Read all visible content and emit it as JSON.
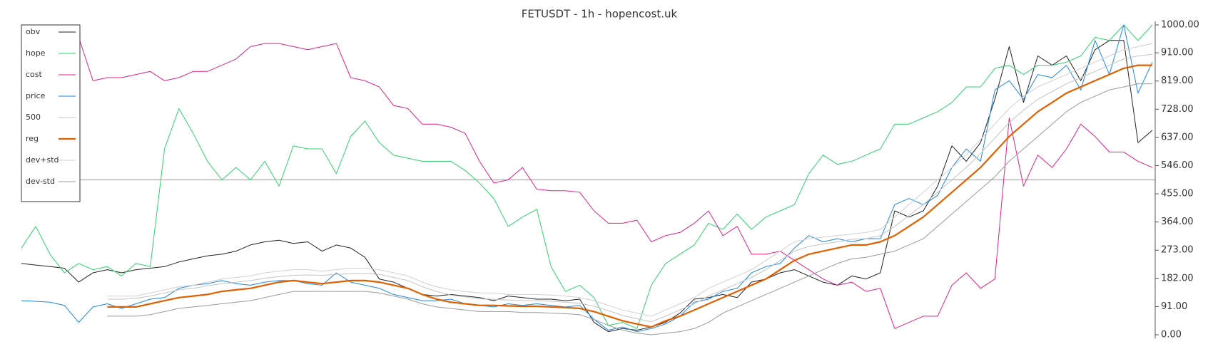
{
  "chart_data": {
    "type": "line",
    "title": "FETUSDT - 1h - hopencost.uk",
    "ylim": [
      0,
      1000
    ],
    "yticks": [
      {
        "value": 0,
        "label": "0.00"
      },
      {
        "value": 91,
        "label": "91.00"
      },
      {
        "value": 182,
        "label": "182.00"
      },
      {
        "value": 273,
        "label": "273.00"
      },
      {
        "value": 364,
        "label": "364.00"
      },
      {
        "value": 455,
        "label": "455.00"
      },
      {
        "value": 546,
        "label": "546.00"
      },
      {
        "value": 637,
        "label": "637.00"
      },
      {
        "value": 728,
        "label": "728.00"
      },
      {
        "value": 819,
        "label": "819.00"
      },
      {
        "value": 910,
        "label": "910.00"
      },
      {
        "value": 1000,
        "label": "1000.00"
      }
    ],
    "hline": 500,
    "hline_color": "#aaaaaa",
    "legend": "upper left",
    "series": [
      {
        "name": "obv",
        "color": "#222222",
        "width": 1,
        "values": [
          230,
          225,
          220,
          215,
          170,
          200,
          210,
          200,
          210,
          215,
          220,
          235,
          245,
          255,
          260,
          270,
          290,
          300,
          305,
          295,
          300,
          270,
          290,
          280,
          250,
          180,
          170,
          150,
          130,
          125,
          130,
          125,
          120,
          110,
          125,
          120,
          115,
          115,
          110,
          115,
          40,
          10,
          20,
          15,
          25,
          40,
          70,
          115,
          120,
          130,
          120,
          170,
          180,
          200,
          210,
          190,
          170,
          160,
          190,
          180,
          200,
          400,
          380,
          400,
          480,
          610,
          560,
          620,
          760,
          930,
          750,
          900,
          870,
          900,
          820,
          920,
          950,
          950,
          620,
          660
        ]
      },
      {
        "name": "hope",
        "color": "#2fd36e",
        "width": 1,
        "values": [
          280,
          350,
          260,
          200,
          230,
          210,
          220,
          190,
          230,
          220,
          600,
          730,
          650,
          560,
          500,
          540,
          500,
          560,
          480,
          610,
          600,
          600,
          520,
          640,
          690,
          620,
          580,
          570,
          560,
          560,
          560,
          530,
          490,
          440,
          350,
          380,
          405,
          220,
          140,
          160,
          120,
          30,
          40,
          20,
          160,
          230,
          260,
          290,
          360,
          340,
          390,
          340,
          380,
          400,
          420,
          520,
          580,
          550,
          560,
          580,
          600,
          680,
          680,
          700,
          720,
          750,
          800,
          800,
          860,
          870,
          840,
          870,
          870,
          880,
          900,
          960,
          950,
          1000,
          950,
          1000
        ]
      },
      {
        "name": "cost",
        "color": "#e0218a",
        "width": 1,
        "values": [
          null,
          null,
          null,
          null,
          960,
          820,
          830,
          830,
          840,
          850,
          820,
          830,
          850,
          850,
          870,
          890,
          930,
          940,
          940,
          930,
          920,
          930,
          940,
          830,
          820,
          800,
          740,
          730,
          680,
          680,
          670,
          650,
          560,
          490,
          500,
          540,
          470,
          465,
          465,
          460,
          400,
          360,
          360,
          370,
          300,
          320,
          330,
          360,
          400,
          320,
          350,
          260,
          260,
          270,
          240,
          210,
          180,
          160,
          170,
          140,
          150,
          20,
          40,
          60,
          60,
          160,
          200,
          150,
          180,
          700,
          480,
          580,
          540,
          600,
          680,
          640,
          590,
          590,
          560,
          540
        ]
      },
      {
        "name": "price",
        "color": "#1e88e5",
        "width": 1,
        "values": [
          110,
          108,
          105,
          95,
          40,
          90,
          100,
          85,
          100,
          115,
          120,
          150,
          160,
          165,
          175,
          165,
          160,
          170,
          175,
          175,
          165,
          160,
          200,
          170,
          160,
          150,
          130,
          120,
          110,
          110,
          115,
          100,
          95,
          90,
          100,
          95,
          100,
          95,
          90,
          95,
          50,
          15,
          25,
          10,
          20,
          35,
          60,
          105,
          115,
          140,
          150,
          200,
          220,
          230,
          280,
          320,
          300,
          310,
          300,
          310,
          310,
          420,
          440,
          420,
          450,
          540,
          600,
          560,
          790,
          820,
          760,
          840,
          830,
          870,
          790,
          950,
          840,
          1000,
          780,
          880
        ]
      },
      {
        "name": "500",
        "color": "#c4c4c4",
        "width": 1,
        "values": [
          null,
          null,
          null,
          null,
          null,
          null,
          115,
          115,
          118,
          125,
          135,
          145,
          150,
          158,
          165,
          170,
          175,
          182,
          188,
          192,
          193,
          192,
          195,
          198,
          198,
          195,
          185,
          175,
          155,
          140,
          128,
          122,
          116,
          114,
          112,
          110,
          110,
          108,
          105,
          102,
          92,
          78,
          62,
          52,
          42,
          60,
          80,
          100,
          125,
          145,
          165,
          185,
          210,
          240,
          270,
          285,
          293,
          300,
          308,
          310,
          320,
          350,
          385,
          420,
          460,
          500,
          540,
          585,
          635,
          685,
          725,
          760,
          785,
          810,
          830,
          850,
          870,
          890,
          900,
          905
        ]
      },
      {
        "name": "reg",
        "color": "#e06000",
        "width": 2.2,
        "values": [
          null,
          null,
          null,
          null,
          null,
          null,
          90,
          90,
          90,
          100,
          110,
          120,
          125,
          130,
          140,
          145,
          150,
          160,
          170,
          175,
          170,
          165,
          170,
          175,
          175,
          170,
          160,
          150,
          130,
          115,
          105,
          100,
          95,
          95,
          93,
          92,
          92,
          90,
          88,
          85,
          75,
          60,
          45,
          35,
          25,
          45,
          60,
          80,
          100,
          120,
          140,
          160,
          180,
          210,
          240,
          260,
          270,
          280,
          290,
          290,
          300,
          320,
          350,
          380,
          420,
          460,
          500,
          540,
          590,
          640,
          680,
          720,
          750,
          780,
          800,
          820,
          840,
          860,
          870,
          870
        ]
      },
      {
        "name": "dev+std",
        "color": "#d0d0d0",
        "width": 1,
        "values": [
          null,
          null,
          null,
          null,
          null,
          null,
          125,
          125,
          125,
          135,
          145,
          155,
          160,
          170,
          180,
          185,
          190,
          200,
          205,
          210,
          210,
          205,
          210,
          215,
          215,
          210,
          200,
          190,
          170,
          155,
          145,
          140,
          135,
          135,
          130,
          130,
          130,
          128,
          125,
          120,
          110,
          95,
          80,
          70,
          60,
          80,
          100,
          120,
          150,
          170,
          190,
          210,
          240,
          270,
          300,
          310,
          315,
          320,
          325,
          330,
          340,
          380,
          420,
          460,
          500,
          540,
          580,
          630,
          680,
          730,
          770,
          800,
          820,
          840,
          860,
          880,
          900,
          920,
          930,
          940
        ]
      },
      {
        "name": "dev-std",
        "color": "#999999",
        "width": 1,
        "values": [
          null,
          null,
          null,
          null,
          null,
          null,
          60,
          60,
          60,
          65,
          75,
          85,
          90,
          95,
          100,
          105,
          110,
          120,
          130,
          140,
          140,
          140,
          140,
          140,
          140,
          135,
          125,
          115,
          100,
          90,
          85,
          80,
          75,
          75,
          75,
          72,
          72,
          70,
          68,
          65,
          50,
          30,
          15,
          5,
          0,
          5,
          10,
          20,
          40,
          70,
          90,
          110,
          130,
          150,
          170,
          190,
          210,
          230,
          245,
          250,
          260,
          270,
          290,
          310,
          350,
          390,
          430,
          470,
          510,
          560,
          600,
          640,
          680,
          720,
          750,
          770,
          790,
          800,
          810,
          810
        ]
      }
    ]
  }
}
